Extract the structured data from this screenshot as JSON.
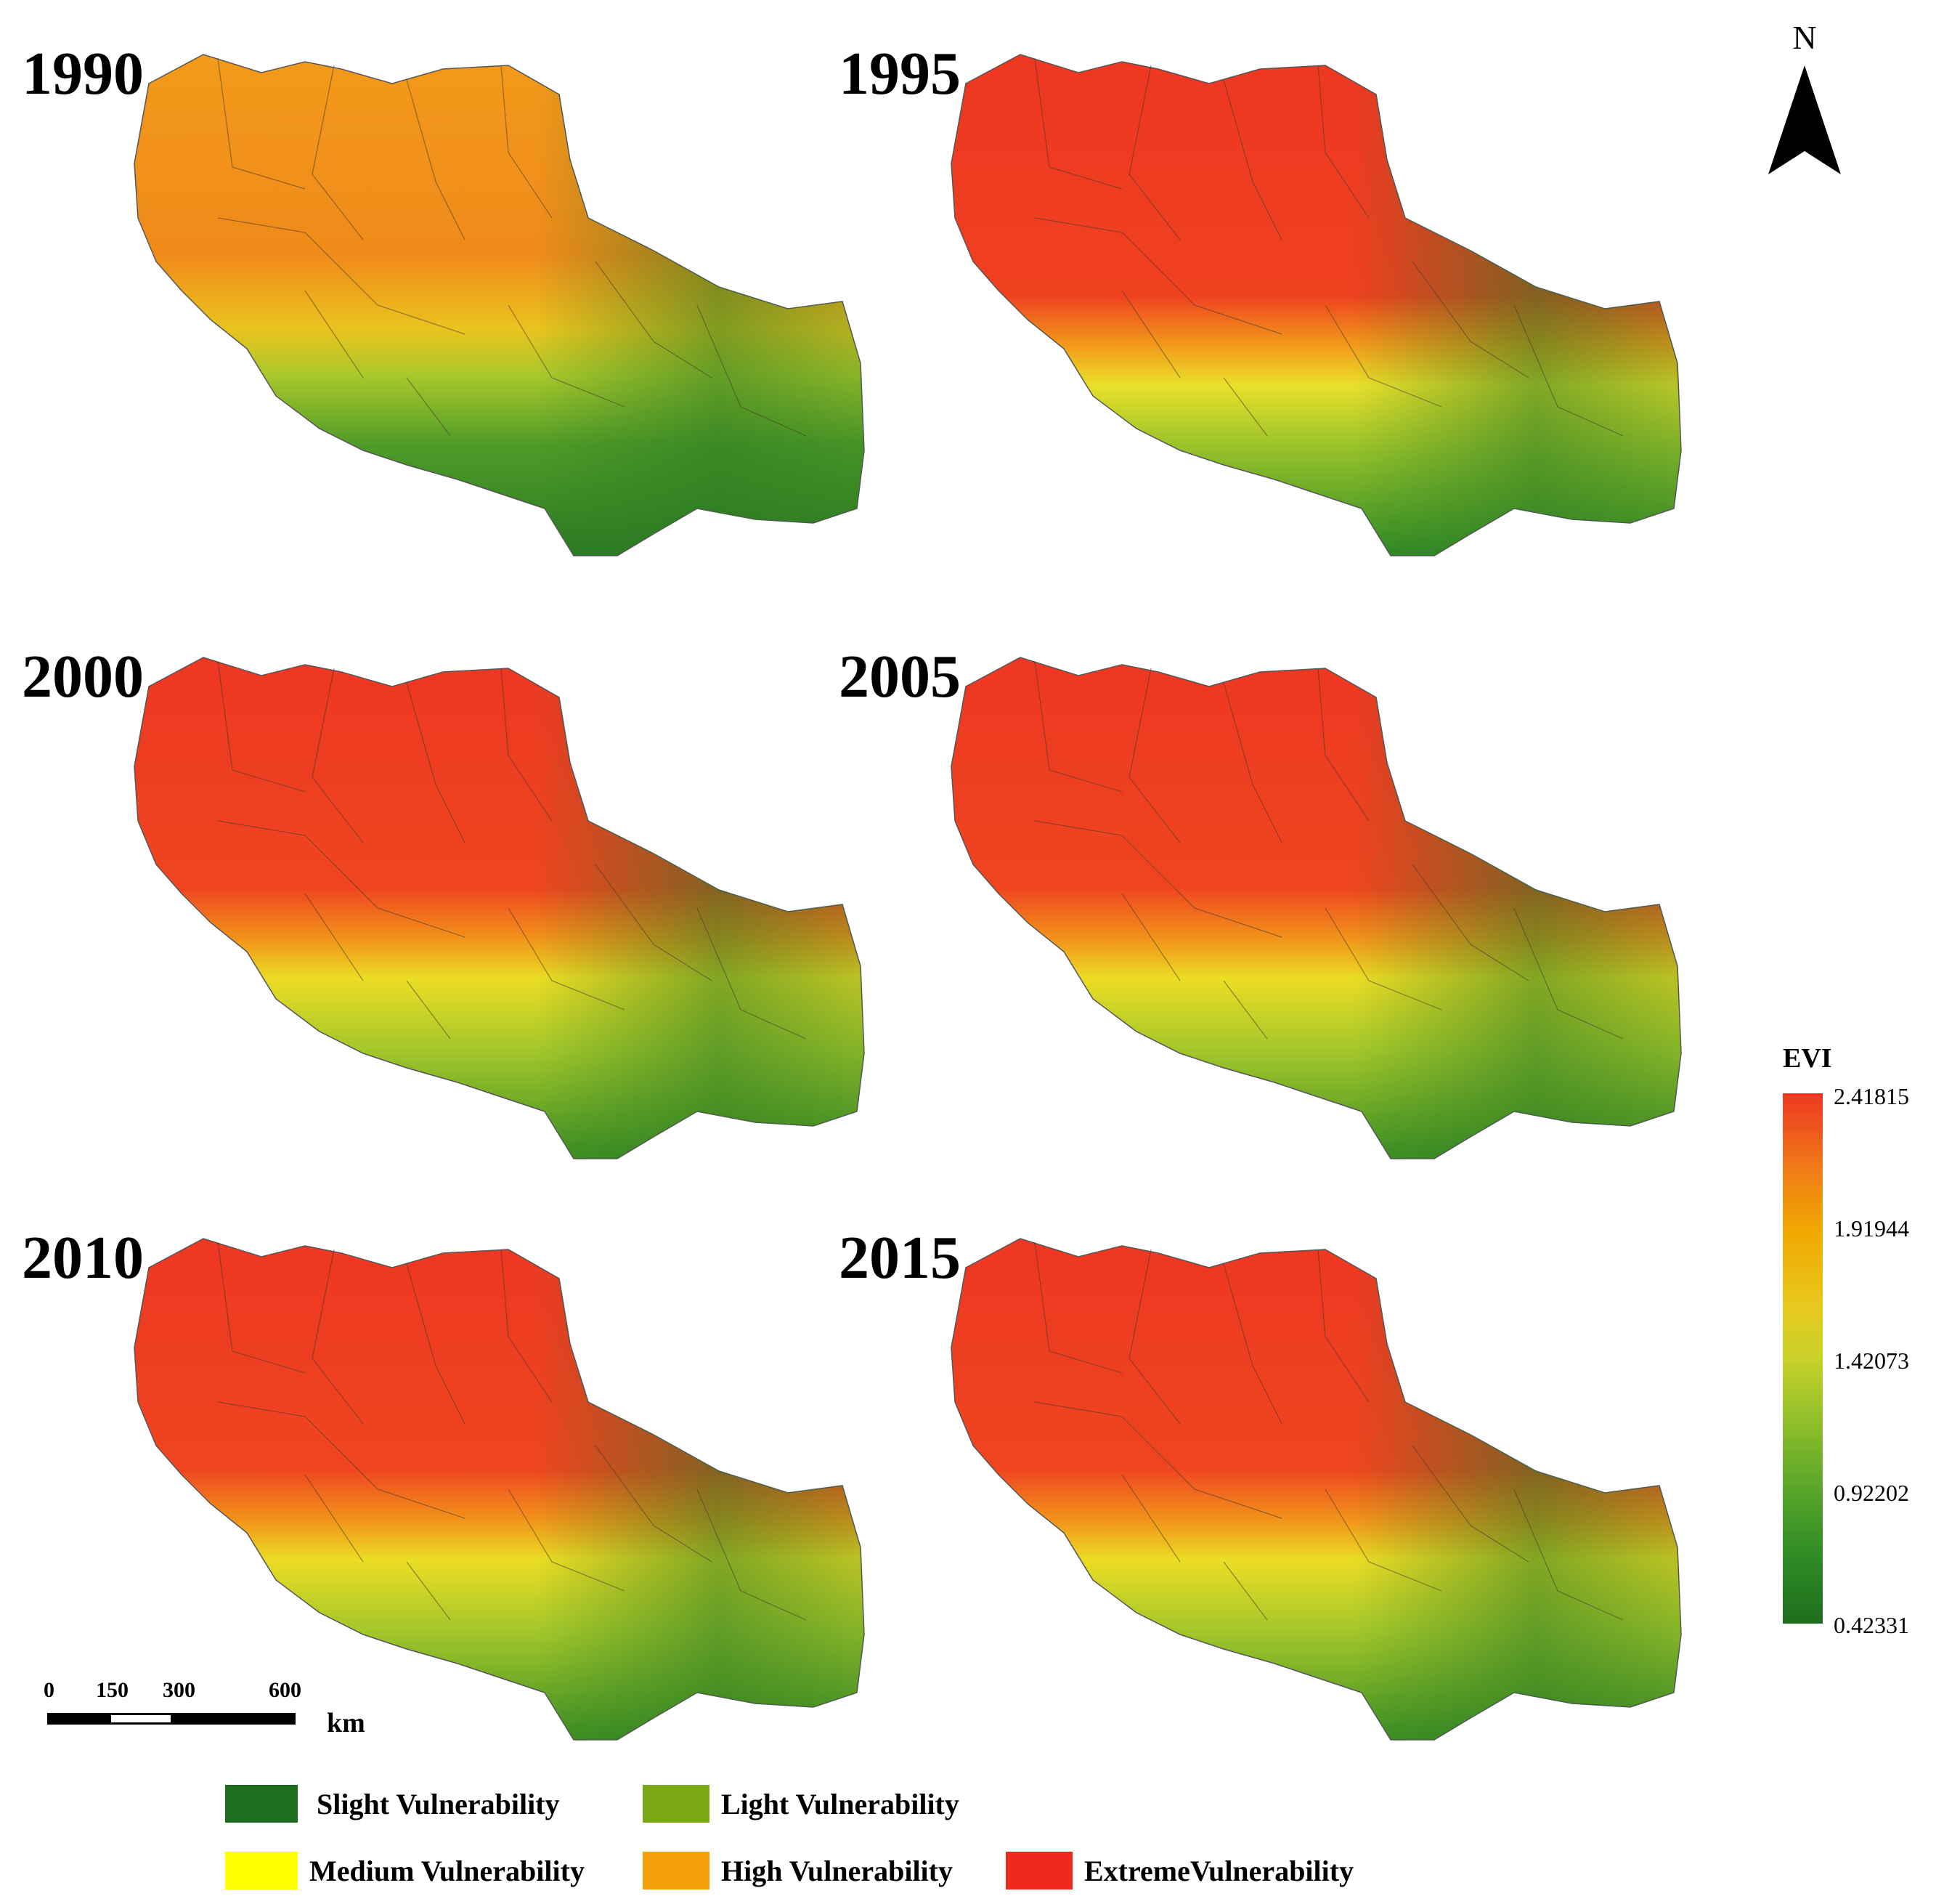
{
  "panels": [
    {
      "year": "1990",
      "scheme": "s1990"
    },
    {
      "year": "1995",
      "scheme": "s1995"
    },
    {
      "year": "2000",
      "scheme": "sLater"
    },
    {
      "year": "2005",
      "scheme": "sLater"
    },
    {
      "year": "2010",
      "scheme": "sLater"
    },
    {
      "year": "2015",
      "scheme": "sLater"
    }
  ],
  "north_arrow": {
    "letter": "N"
  },
  "colorbar": {
    "title": "EVI",
    "ticks": [
      "2.41815",
      "1.91944",
      "1.42073",
      "0.92202",
      "0.42331"
    ],
    "max_color": "#ee3722",
    "min_color": "#1f6e1e"
  },
  "scale_bar": {
    "labels": [
      "0",
      "150",
      "300",
      "600"
    ],
    "unit": "km"
  },
  "legend": {
    "items": [
      {
        "label": "Slight Vulnerability",
        "color": "#1f6e1e"
      },
      {
        "label": "Light Vulnerability",
        "color": "#7aa815"
      },
      {
        "label": "Medium Vulnerability",
        "color": "#ffff00"
      },
      {
        "label": "High Vulnerability",
        "color": "#f5a00a"
      },
      {
        "label": "ExtremeVulnerability",
        "color": "#ee2a1c"
      }
    ]
  }
}
